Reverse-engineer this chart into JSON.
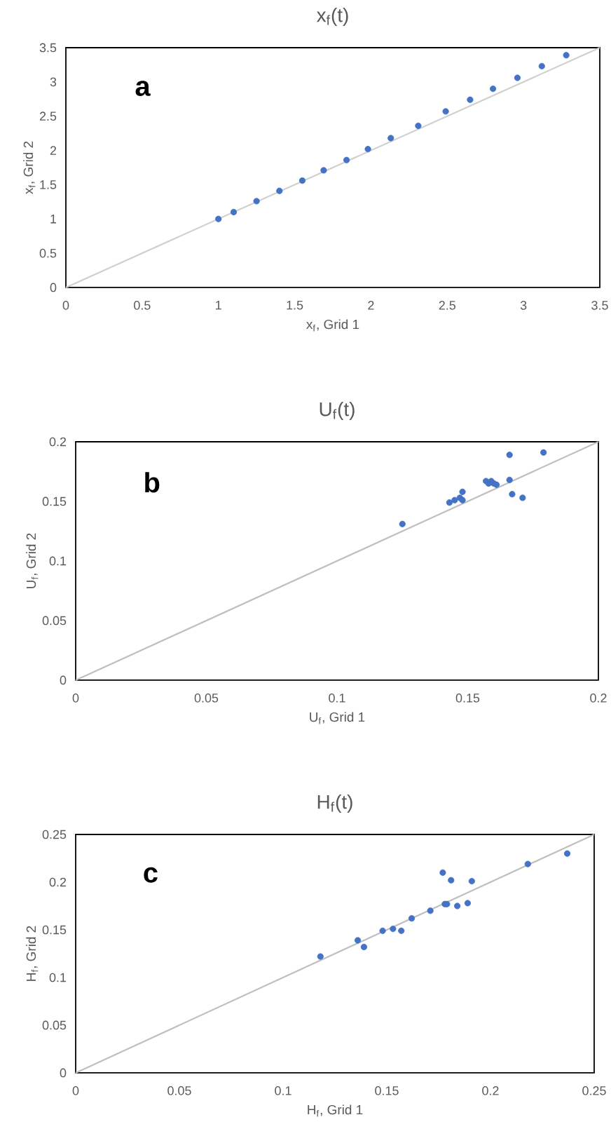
{
  "chart_data": [
    {
      "type": "scatter",
      "title": "x$_{f}$(t)",
      "xlabel": "x$_{f}$, Grid 1",
      "ylabel": "x$_{f}$, Grid 2",
      "annotations": [
        "a"
      ],
      "xlim": [
        0,
        3.5
      ],
      "ylim": [
        0,
        3.5
      ],
      "xticks": [
        0,
        0.5,
        1,
        1.5,
        2,
        2.5,
        3,
        3.5
      ],
      "yticks": [
        0,
        0.5,
        1,
        1.5,
        2,
        2.5,
        3,
        3.5
      ],
      "grid": false,
      "marker": "circle",
      "series": [
        {
          "type": "line",
          "marker": "none",
          "color": "#d0d0d0",
          "x": [
            0,
            3.5
          ],
          "values": [
            0,
            3.5
          ]
        },
        {
          "color": "#4472c4",
          "x": [
            1.0,
            1.1,
            1.25,
            1.4,
            1.55,
            1.69,
            1.84,
            1.98,
            2.13,
            2.31,
            2.49,
            2.65,
            2.8,
            2.96,
            3.12,
            3.28
          ],
          "values": [
            1.0,
            1.1,
            1.26,
            1.41,
            1.56,
            1.71,
            1.86,
            2.02,
            2.18,
            2.36,
            2.57,
            2.74,
            2.9,
            3.06,
            3.23,
            3.39
          ]
        }
      ]
    },
    {
      "type": "scatter",
      "title": "U$_{f}$(t)",
      "xlabel": "U$_{f}$, Grid 1",
      "ylabel": "U$_{f}$, Grid 2",
      "annotations": [
        "b"
      ],
      "xlim": [
        0,
        0.2
      ],
      "ylim": [
        0,
        0.2
      ],
      "xticks": [
        0,
        0.05,
        0.1,
        0.15,
        0.2
      ],
      "yticks": [
        0,
        0.05,
        0.1,
        0.15,
        0.2
      ],
      "grid": false,
      "marker": "circle",
      "series": [
        {
          "type": "line",
          "marker": "none",
          "color": "#bfbfbf",
          "x": [
            0,
            0.2
          ],
          "values": [
            0,
            0.2
          ]
        },
        {
          "color": "#4472c4",
          "x": [
            0.125,
            0.143,
            0.145,
            0.147,
            0.148,
            0.148,
            0.157,
            0.158,
            0.159,
            0.16,
            0.161,
            0.166,
            0.166,
            0.167,
            0.171,
            0.179
          ],
          "values": [
            0.131,
            0.149,
            0.151,
            0.153,
            0.158,
            0.151,
            0.167,
            0.165,
            0.167,
            0.165,
            0.164,
            0.189,
            0.168,
            0.156,
            0.153,
            0.191
          ]
        }
      ]
    },
    {
      "type": "scatter",
      "title": "H$_{f}$(t)",
      "xlabel": "H$_{f}$, Grid 1",
      "ylabel": "H$_{f}$, Grid 2",
      "annotations": [
        "c"
      ],
      "xlim": [
        0,
        0.25
      ],
      "ylim": [
        0,
        0.25
      ],
      "xticks": [
        0,
        0.05,
        0.1,
        0.15,
        0.2,
        0.25
      ],
      "yticks": [
        0,
        0.05,
        0.1,
        0.15,
        0.2,
        0.25
      ],
      "grid": false,
      "marker": "circle",
      "series": [
        {
          "type": "line",
          "marker": "none",
          "color": "#bfbfbf",
          "x": [
            0,
            0.25
          ],
          "values": [
            0,
            0.25
          ]
        },
        {
          "color": "#4472c4",
          "x": [
            0.118,
            0.136,
            0.139,
            0.148,
            0.153,
            0.157,
            0.162,
            0.171,
            0.177,
            0.178,
            0.179,
            0.181,
            0.184,
            0.189,
            0.191,
            0.218,
            0.237
          ],
          "values": [
            0.122,
            0.139,
            0.132,
            0.149,
            0.151,
            0.149,
            0.162,
            0.17,
            0.21,
            0.177,
            0.177,
            0.202,
            0.175,
            0.178,
            0.201,
            0.219,
            0.23
          ]
        }
      ]
    }
  ]
}
